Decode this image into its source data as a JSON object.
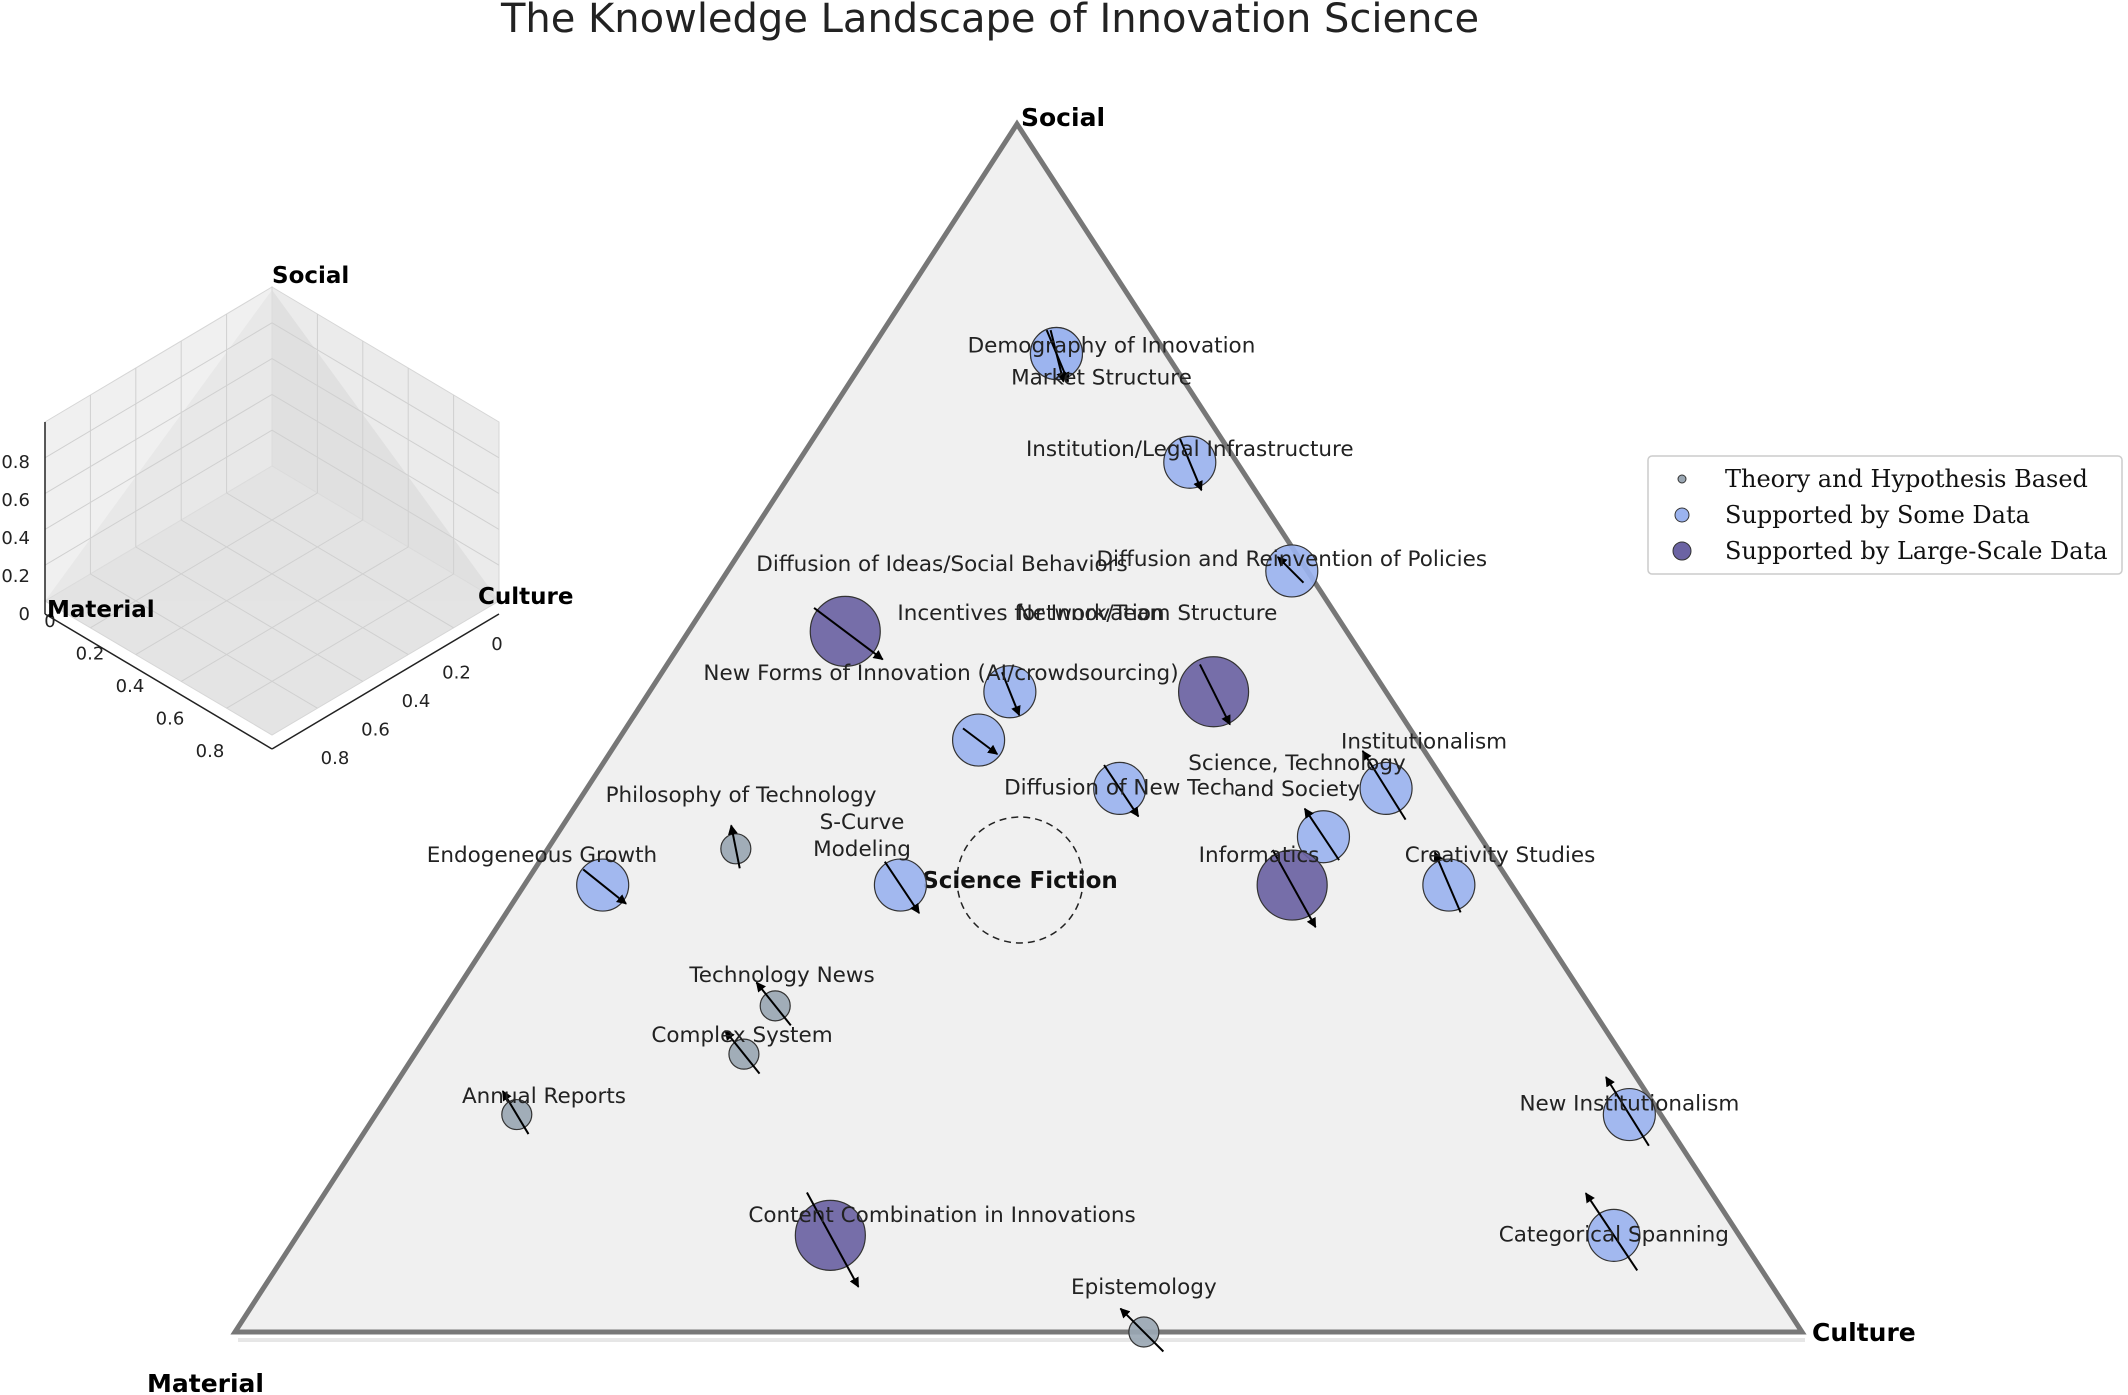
{
  "chart_data": [
    {
      "type": "scatter",
      "subtype": "ternary",
      "title": "The Knowledge Landscape of Innovation Science",
      "axes": {
        "top": "Social",
        "bottom_left": "Material",
        "bottom_right": "Culture"
      },
      "center_label": "Science Fiction",
      "legend": {
        "placement": "right",
        "entries": [
          {
            "key": "theory",
            "label": "Theory and Hypothesis Based",
            "color": "#9aa7b3"
          },
          {
            "key": "some",
            "label": "Supported by Some Data",
            "color": "#9bb3ef"
          },
          {
            "key": "large",
            "label": "Supported by Large-Scale Data",
            "color": "#6b63a3"
          }
        ]
      },
      "points": [
        {
          "name": "Demography of Innovation",
          "social": 0.81,
          "material": 0.07,
          "culture": 0.12,
          "support": "some",
          "vector": [
            0.015,
            -0.06
          ]
        },
        {
          "name": "Market Structure",
          "social": 0.81,
          "material": 0.07,
          "culture": 0.12,
          "support": "some",
          "vector": [
            0.025,
            -0.06
          ]
        },
        {
          "name": "Institution/Legal Infrastructure",
          "social": 0.72,
          "material": 0.03,
          "culture": 0.25,
          "support": "some",
          "vector": [
            0.025,
            -0.06
          ]
        },
        {
          "name": "Diffusion and Reinvention of Policies",
          "social": 0.63,
          "material": 0.01,
          "culture": 0.36,
          "support": "some",
          "vector": [
            -0.03,
            0.03
          ]
        },
        {
          "name": "Diffusion of Ideas/Social Behaviors",
          "social": 0.58,
          "material": 0.32,
          "culture": 0.1,
          "support": "large",
          "vector": [
            0.08,
            -0.06
          ]
        },
        {
          "name": "Incentives for Innovation",
          "social": 0.53,
          "material": 0.24,
          "culture": 0.23,
          "support": "some",
          "vector": [
            0.02,
            -0.05
          ]
        },
        {
          "name": "Network/Team Structure",
          "social": 0.53,
          "material": 0.11,
          "culture": 0.36,
          "support": "large",
          "vector": [
            0.035,
            -0.07
          ]
        },
        {
          "name": "New Forms of Innovation (AI/crowdsourcing)",
          "social": 0.49,
          "material": 0.28,
          "culture": 0.23,
          "support": "some",
          "vector": [
            0.04,
            -0.03
          ]
        },
        {
          "name": "Diffusion of New Tech",
          "social": 0.45,
          "material": 0.21,
          "culture": 0.34,
          "support": "some",
          "vector": [
            0.04,
            -0.06
          ]
        },
        {
          "name": "Institutionalism",
          "social": 0.45,
          "material": 0.04,
          "culture": 0.51,
          "support": "some",
          "vector": [
            -0.05,
            0.08
          ]
        },
        {
          "name": "Philosophy of Technology",
          "social": 0.4,
          "material": 0.48,
          "culture": 0.12,
          "support": "theory",
          "vector": [
            -0.01,
            0.05
          ]
        },
        {
          "name": "Science, Technology and Society",
          "social": 0.41,
          "material": 0.1,
          "culture": 0.49,
          "support": "some",
          "vector": [
            -0.04,
            0.06
          ]
        },
        {
          "name": "Endogeneous Growth",
          "social": 0.37,
          "material": 0.58,
          "culture": 0.05,
          "support": "some",
          "vector": [
            0.05,
            -0.04
          ]
        },
        {
          "name": "S-Curve Modeling",
          "social": 0.37,
          "material": 0.39,
          "culture": 0.24,
          "support": "some",
          "vector": [
            0.04,
            -0.06
          ]
        },
        {
          "name": "Informatics",
          "social": 0.37,
          "material": 0.14,
          "culture": 0.49,
          "support": "large",
          "vector": [
            0.05,
            -0.09
          ]
        },
        {
          "name": "Creativity Studies",
          "social": 0.37,
          "material": 0.04,
          "culture": 0.59,
          "support": "some",
          "vector": [
            -0.03,
            0.07
          ]
        },
        {
          "name": "Technology News",
          "social": 0.27,
          "material": 0.52,
          "culture": 0.21,
          "support": "theory",
          "vector": [
            -0.04,
            0.05
          ]
        },
        {
          "name": "Complex System",
          "social": 0.23,
          "material": 0.56,
          "culture": 0.21,
          "support": "theory",
          "vector": [
            -0.04,
            0.05
          ]
        },
        {
          "name": "Annual Reports",
          "social": 0.18,
          "material": 0.73,
          "culture": 0.09,
          "support": "theory",
          "vector": [
            -0.03,
            0.05
          ]
        },
        {
          "name": "New Institutionalism",
          "social": 0.18,
          "material": 0.02,
          "culture": 0.8,
          "support": "some",
          "vector": [
            -0.05,
            0.08
          ]
        },
        {
          "name": "Content Combination in Innovations",
          "social": 0.08,
          "material": 0.58,
          "culture": 0.34,
          "support": "large",
          "vector": [
            0.06,
            -0.11
          ]
        },
        {
          "name": "Categorical Spanning",
          "social": 0.08,
          "material": 0.08,
          "culture": 0.84,
          "support": "some",
          "vector": [
            -0.06,
            0.09
          ]
        },
        {
          "name": "Epistemology",
          "social": 0.0,
          "material": 0.42,
          "culture": 0.58,
          "support": "theory",
          "vector": [
            -0.05,
            0.05
          ]
        }
      ]
    },
    {
      "type": "3d-axes",
      "axes": {
        "z": "Social",
        "x": "Material",
        "y": "Culture"
      },
      "z_ticks": [
        "0",
        "0.2",
        "0.4",
        "0.6",
        "0.8"
      ],
      "x_ticks": [
        "0",
        "0.2",
        "0.4",
        "0.6",
        "0.8"
      ],
      "y_ticks": [
        "0",
        "0.2",
        "0.4",
        "0.6",
        "0.8"
      ],
      "grid": true
    }
  ]
}
